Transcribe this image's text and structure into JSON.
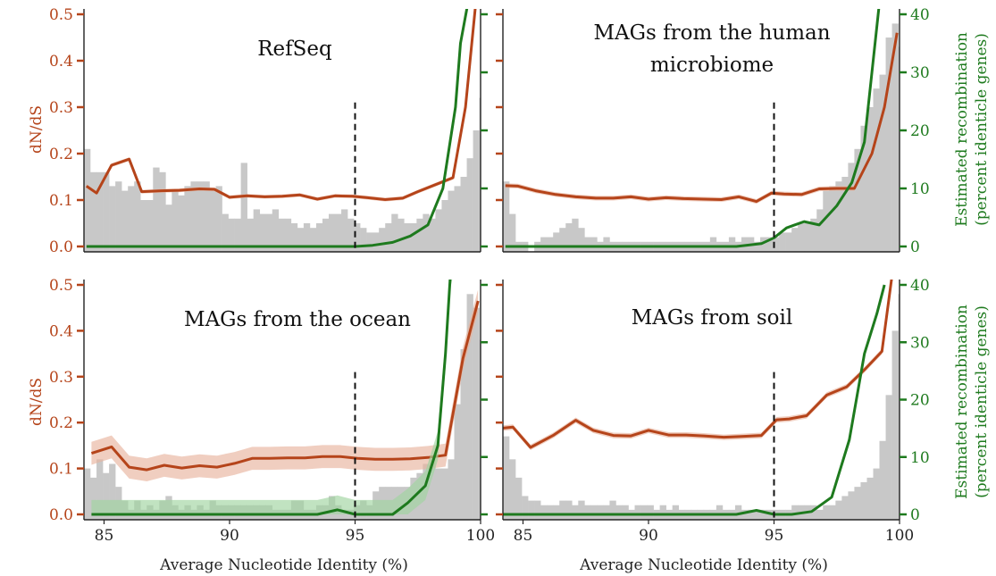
{
  "colors": {
    "dnds": "#b5441a",
    "dnds_band": "#e8b39e",
    "recombination": "#1e7a1e",
    "recombination_band": "#9fd49f",
    "histogram": "#c8c8c8",
    "threshold_line": "#111111"
  },
  "axes": {
    "left_label": "dN/dS",
    "right_label_line1": "Estimated recombination",
    "right_label_line2": "(percent identicle genes)",
    "x_label": "Average Nucleotide Identity (%)"
  },
  "chart_data": [
    {
      "type": "line",
      "title": "RefSeq",
      "xlim": [
        84.2,
        100
      ],
      "ylim_left": [
        0,
        0.5
      ],
      "ylim_right": [
        0,
        40
      ],
      "x_ticks": [
        85,
        90,
        95,
        100
      ],
      "y_ticks_left": [
        "0.0",
        "0.1",
        "0.2",
        "0.3",
        "0.4",
        "0.5"
      ],
      "y_ticks_right": [
        "0",
        "10",
        "20",
        "30",
        "40"
      ],
      "threshold_x": 95,
      "threshold_top": 0.31,
      "series": [
        {
          "axis": "left",
          "band": 0.004,
          "x": [
            84.3,
            84.7,
            85.3,
            86.0,
            86.5,
            87.3,
            88.0,
            88.8,
            89.4,
            90.0,
            90.7,
            91.4,
            92.1,
            92.8,
            93.5,
            94.2,
            94.9,
            95.5,
            96.2,
            96.9,
            97.5,
            98.2,
            98.9,
            99.4,
            99.8
          ],
          "y": [
            0.13,
            0.115,
            0.175,
            0.188,
            0.118,
            0.12,
            0.121,
            0.124,
            0.123,
            0.106,
            0.109,
            0.107,
            0.108,
            0.111,
            0.102,
            0.109,
            0.108,
            0.105,
            0.101,
            0.104,
            0.118,
            0.133,
            0.148,
            0.3,
            0.52
          ]
        },
        {
          "axis": "right",
          "x": [
            84.3,
            86.0,
            88.0,
            90.0,
            92.0,
            94.0,
            95.0,
            95.7,
            96.5,
            97.2,
            97.9,
            98.5,
            99.0,
            99.2,
            99.5
          ],
          "y": [
            0,
            0,
            0,
            0,
            0,
            0,
            0,
            0.2,
            0.7,
            1.8,
            3.7,
            10,
            24,
            35,
            42
          ]
        }
      ],
      "histogram": {
        "x_start": 84.2,
        "bin_width": 0.25,
        "values": [
          0.21,
          0.16,
          0.16,
          0.16,
          0.13,
          0.14,
          0.12,
          0.13,
          0.14,
          0.1,
          0.1,
          0.17,
          0.16,
          0.09,
          0.12,
          0.11,
          0.13,
          0.14,
          0.14,
          0.14,
          0.12,
          0.13,
          0.07,
          0.06,
          0.06,
          0.18,
          0.06,
          0.08,
          0.07,
          0.07,
          0.08,
          0.06,
          0.06,
          0.05,
          0.04,
          0.05,
          0.04,
          0.05,
          0.06,
          0.07,
          0.07,
          0.08,
          0.06,
          0.05,
          0.04,
          0.03,
          0.03,
          0.04,
          0.05,
          0.07,
          0.06,
          0.05,
          0.05,
          0.06,
          0.07,
          0.06,
          0.08,
          0.1,
          0.12,
          0.13,
          0.15,
          0.19,
          0.25,
          0.32,
          0.4,
          0.53
        ]
      }
    },
    {
      "type": "line",
      "title": "MAGs from the human microbiome",
      "title_line1": "MAGs from the human",
      "title_line2": "microbiome",
      "xlim": [
        84.2,
        100
      ],
      "ylim_left": [
        0,
        0.5
      ],
      "ylim_right": [
        0,
        40
      ],
      "x_ticks": [
        85,
        90,
        95,
        100
      ],
      "y_ticks_left": [
        "0.0",
        "0.1",
        "0.2",
        "0.3",
        "0.4",
        "0.5"
      ],
      "y_ticks_right": [
        "0",
        "10",
        "20",
        "30",
        "40"
      ],
      "threshold_x": 95,
      "threshold_top": 0.31,
      "series": [
        {
          "axis": "left",
          "band": 0.005,
          "x": [
            84.3,
            84.8,
            85.5,
            86.3,
            87.1,
            87.9,
            88.6,
            89.3,
            90.0,
            90.7,
            91.4,
            92.2,
            92.9,
            93.6,
            94.3,
            94.9,
            95.4,
            96.1,
            96.8,
            97.5,
            98.2,
            98.9,
            99.4,
            99.9
          ],
          "y": [
            0.131,
            0.13,
            0.12,
            0.112,
            0.107,
            0.104,
            0.104,
            0.107,
            0.102,
            0.105,
            0.103,
            0.102,
            0.101,
            0.107,
            0.097,
            0.115,
            0.113,
            0.112,
            0.124,
            0.125,
            0.125,
            0.2,
            0.3,
            0.46
          ]
        },
        {
          "axis": "right",
          "x": [
            84.3,
            86.0,
            88.0,
            90.0,
            92.0,
            93.5,
            94.5,
            95.0,
            95.5,
            96.2,
            96.8,
            97.5,
            98.1,
            98.6,
            98.9,
            99.2,
            99.3
          ],
          "y": [
            0,
            0,
            0,
            0,
            0,
            0,
            0.5,
            1.5,
            3.2,
            4.3,
            3.7,
            7,
            11,
            18,
            30,
            42,
            43
          ]
        }
      ],
      "histogram": {
        "x_start": 84.2,
        "bin_width": 0.25,
        "values": [
          0.14,
          0.07,
          0.01,
          0.01,
          0.0,
          0.01,
          0.02,
          0.02,
          0.03,
          0.04,
          0.05,
          0.06,
          0.04,
          0.02,
          0.02,
          0.01,
          0.02,
          0.01,
          0.01,
          0.01,
          0.01,
          0.01,
          0.01,
          0.01,
          0.01,
          0.01,
          0.01,
          0.01,
          0.01,
          0.01,
          0.01,
          0.01,
          0.01,
          0.02,
          0.01,
          0.01,
          0.02,
          0.01,
          0.02,
          0.02,
          0.01,
          0.02,
          0.02,
          0.02,
          0.03,
          0.03,
          0.04,
          0.05,
          0.05,
          0.06,
          0.08,
          0.12,
          0.13,
          0.14,
          0.15,
          0.18,
          0.21,
          0.26,
          0.3,
          0.34,
          0.37,
          0.45,
          0.48,
          0.43,
          0.26,
          0.17
        ]
      }
    },
    {
      "type": "line",
      "title": "MAGs from the ocean",
      "xlim": [
        84.2,
        100
      ],
      "ylim_left": [
        0,
        0.5
      ],
      "ylim_right": [
        0,
        40
      ],
      "x_ticks": [
        85,
        90,
        95,
        100
      ],
      "y_ticks_left": [
        "0.0",
        "0.1",
        "0.2",
        "0.3",
        "0.4",
        "0.5"
      ],
      "y_ticks_right": [
        "0",
        "10",
        "20",
        "30",
        "40"
      ],
      "threshold_x": 95,
      "threshold_top": 0.31,
      "series": [
        {
          "axis": "left",
          "band": 0.025,
          "x": [
            84.5,
            85.3,
            86.0,
            86.7,
            87.4,
            88.1,
            88.8,
            89.5,
            90.2,
            90.9,
            91.6,
            92.3,
            93.0,
            93.7,
            94.4,
            95.1,
            95.8,
            96.5,
            97.2,
            97.9,
            98.6,
            99.3,
            99.9
          ],
          "y": [
            0.133,
            0.147,
            0.103,
            0.097,
            0.107,
            0.101,
            0.106,
            0.103,
            0.111,
            0.122,
            0.122,
            0.123,
            0.123,
            0.126,
            0.126,
            0.122,
            0.12,
            0.12,
            0.121,
            0.124,
            0.129,
            0.34,
            0.465
          ]
        },
        {
          "axis": "right",
          "band": 2.5,
          "x": [
            84.5,
            86.0,
            88.0,
            90.0,
            92.0,
            93.5,
            94.3,
            95.0,
            95.8,
            96.5,
            97.1,
            97.8,
            98.3,
            98.6,
            98.8,
            99.0
          ],
          "y": [
            0,
            0,
            0,
            0,
            0,
            0,
            0.8,
            0,
            0,
            0,
            2,
            5,
            12,
            28,
            42,
            46
          ]
        }
      ],
      "histogram": {
        "x_start": 84.2,
        "bin_width": 0.25,
        "values": [
          0.1,
          0.08,
          0.12,
          0.09,
          0.11,
          0.06,
          0.03,
          0.01,
          0.03,
          0.01,
          0.02,
          0.01,
          0.03,
          0.04,
          0.02,
          0.01,
          0.02,
          0.01,
          0.02,
          0.01,
          0.03,
          0.02,
          0.02,
          0.02,
          0.02,
          0.02,
          0.02,
          0.02,
          0.02,
          0.02,
          0.01,
          0.01,
          0.01,
          0.03,
          0.03,
          0.01,
          0.01,
          0.02,
          0.02,
          0.04,
          0.02,
          0.01,
          0.01,
          0.02,
          0.03,
          0.02,
          0.05,
          0.06,
          0.06,
          0.06,
          0.06,
          0.06,
          0.08,
          0.09,
          0.11,
          0.12,
          0.1,
          0.1,
          0.12,
          0.24,
          0.36,
          0.48,
          0.45,
          0.38,
          0.15,
          0.48
        ]
      }
    },
    {
      "type": "line",
      "title": "MAGs from soil",
      "xlim": [
        84.2,
        100
      ],
      "ylim_left": [
        0,
        0.5
      ],
      "ylim_right": [
        0,
        40
      ],
      "x_ticks": [
        85,
        90,
        95,
        100
      ],
      "y_ticks_left": [
        "0.0",
        "0.1",
        "0.2",
        "0.3",
        "0.4",
        "0.5"
      ],
      "y_ticks_right": [
        "0",
        "10",
        "20",
        "30",
        "40"
      ],
      "threshold_x": 95,
      "threshold_top": 0.31,
      "series": [
        {
          "axis": "left",
          "band": 0.006,
          "x": [
            84.2,
            84.6,
            85.3,
            86.2,
            87.1,
            87.8,
            88.6,
            89.3,
            90.0,
            90.8,
            91.5,
            92.2,
            93.0,
            93.8,
            94.5,
            95.1,
            95.6,
            96.3,
            97.1,
            97.9,
            98.6,
            99.3,
            99.7
          ],
          "y": [
            0.188,
            0.19,
            0.146,
            0.172,
            0.205,
            0.183,
            0.172,
            0.171,
            0.183,
            0.173,
            0.173,
            0.171,
            0.168,
            0.17,
            0.172,
            0.206,
            0.208,
            0.215,
            0.26,
            0.278,
            0.315,
            0.355,
            0.52
          ]
        },
        {
          "axis": "right",
          "x": [
            84.2,
            86.0,
            88.0,
            90.0,
            92.0,
            93.5,
            94.3,
            95.0,
            95.7,
            96.5,
            97.3,
            98.0,
            98.6,
            99.1,
            99.4
          ],
          "y": [
            0,
            0,
            0,
            0,
            0,
            0,
            0.7,
            0,
            0,
            0.5,
            3,
            13,
            28,
            35,
            40
          ]
        }
      ],
      "histogram": {
        "x_start": 84.2,
        "bin_width": 0.25,
        "values": [
          0.17,
          0.12,
          0.08,
          0.04,
          0.03,
          0.03,
          0.02,
          0.02,
          0.02,
          0.03,
          0.03,
          0.02,
          0.03,
          0.02,
          0.02,
          0.02,
          0.02,
          0.03,
          0.02,
          0.02,
          0.01,
          0.02,
          0.02,
          0.02,
          0.01,
          0.02,
          0.01,
          0.02,
          0.01,
          0.01,
          0.01,
          0.01,
          0.01,
          0.01,
          0.02,
          0.01,
          0.01,
          0.02,
          0.01,
          0.01,
          0.01,
          0.01,
          0.01,
          0.01,
          0.01,
          0.01,
          0.02,
          0.02,
          0.02,
          0.02,
          0.01,
          0.02,
          0.02,
          0.03,
          0.04,
          0.05,
          0.06,
          0.07,
          0.08,
          0.1,
          0.16,
          0.26,
          0.4,
          0.48,
          0.5,
          0.07
        ]
      }
    }
  ]
}
